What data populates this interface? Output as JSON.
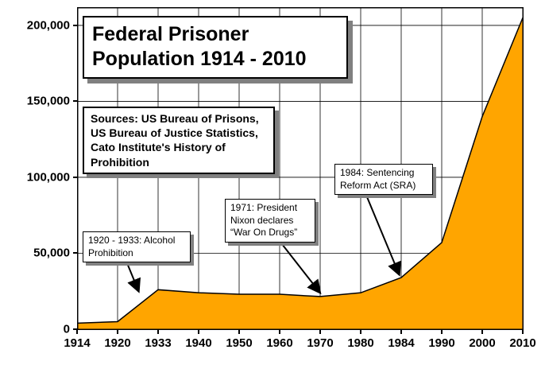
{
  "title_box": {
    "text": "Federal Prisoner\nPopulation 1914 - 2010"
  },
  "sources_box": {
    "text": "Sources: US Bureau of Prisons,\nUS Bureau of Justice Statistics,\nCato Institute's History of\nProhibition"
  },
  "annotations": {
    "prohibition": {
      "text": "1920 - 1933: Alcohol\nProhibition"
    },
    "nixon": {
      "text": "1971: President\nNixon declares\n“War On Drugs”"
    },
    "sra": {
      "text": "1984: Sentencing\nReform Act (SRA)"
    }
  },
  "chart_data": {
    "type": "area",
    "title": "Federal Prisoner Population 1914 - 2010",
    "xlabel": "",
    "ylabel": "",
    "categories": [
      "1914",
      "1920",
      "1933",
      "1940",
      "1950",
      "1960",
      "1970",
      "1980",
      "1984",
      "1990",
      "2000",
      "2010"
    ],
    "values": [
      4000,
      5000,
      26000,
      24000,
      23000,
      23000,
      21500,
      24000,
      34000,
      57000,
      140000,
      205000
    ],
    "ylim": [
      0,
      212000
    ],
    "yticks": [
      0,
      50000,
      100000,
      150000,
      200000
    ],
    "ytick_labels": [
      "0",
      "50,000",
      "100,000",
      "150,000",
      "200,000"
    ],
    "grid": true,
    "legend": "none",
    "fill_color": "#FFA500",
    "line_color": "#000000"
  }
}
